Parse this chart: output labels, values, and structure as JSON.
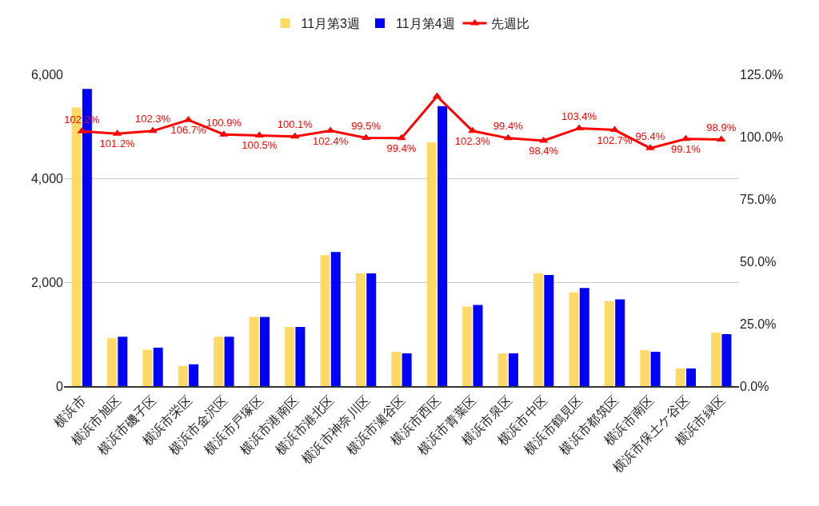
{
  "chart_data": {
    "type": "bar",
    "categories": [
      "横浜市",
      "横浜市旭区",
      "横浜市磯子区",
      "横浜市栄区",
      "横浜市金沢区",
      "横浜市戸塚区",
      "横浜市港南区",
      "横浜市港北区",
      "横浜市神奈川区",
      "横浜市瀬谷区",
      "横浜市西区",
      "横浜市青葉区",
      "横浜市泉区",
      "横浜市中区",
      "横浜市鶴見区",
      "横浜市都筑区",
      "横浜市南区",
      "横浜市保土ケ谷区",
      "横浜市緑区"
    ],
    "series": [
      {
        "name": "11月第3週",
        "color": "#ffd966",
        "values": [
          5360,
          920,
          700,
          390,
          950,
          1330,
          1140,
          2520,
          2170,
          660,
          4690,
          1530,
          630,
          2170,
          1800,
          1640,
          690,
          340,
          1030
        ]
      },
      {
        "name": "11月第4週",
        "color": "#0000ff",
        "values": [
          5720,
          950,
          740,
          420,
          950,
          1330,
          1140,
          2580,
          2170,
          630,
          5390,
          1560,
          630,
          2140,
          1890,
          1670,
          660,
          340,
          1000
        ]
      },
      {
        "name": "先週比",
        "type": "line",
        "axis": "y2",
        "color": "#ff0000",
        "marker": "triangle",
        "values": [
          102.2,
          101.2,
          102.3,
          106.7,
          100.9,
          100.5,
          100.1,
          102.4,
          99.5,
          99.4,
          116.2,
          102.3,
          99.4,
          98.4,
          103.4,
          102.7,
          95.4,
          99.1,
          98.9
        ],
        "value_labels": [
          "102.2%",
          "101.2%",
          "102.3%",
          "106.7%",
          "100.9%",
          "100.5%",
          "100.1%",
          "102.4%",
          "99.5%",
          "99.4%",
          null,
          "102.3%",
          "99.4%",
          "98.4%",
          "103.4%",
          "102.7%",
          "95.4%",
          "99.1%",
          "98.9%"
        ]
      }
    ],
    "ylim": [
      0,
      6000
    ],
    "yticks": [
      0,
      {
        "value": 2000,
        "label": "2,000"
      },
      {
        "value": 4000,
        "label": "4,000"
      },
      {
        "value": 6000,
        "label": "6,000"
      }
    ],
    "y2lim": [
      0,
      125
    ],
    "y2ticks": [
      {
        "value": 0,
        "label": "0.0%"
      },
      {
        "value": 25,
        "label": "25.0%"
      },
      {
        "value": 50,
        "label": "50.0%"
      },
      {
        "value": 75,
        "label": "75.0%"
      },
      {
        "value": 100,
        "label": "100.0%"
      },
      {
        "value": 125,
        "label": "125.0%"
      }
    ],
    "grid": "y",
    "legend": "top"
  }
}
